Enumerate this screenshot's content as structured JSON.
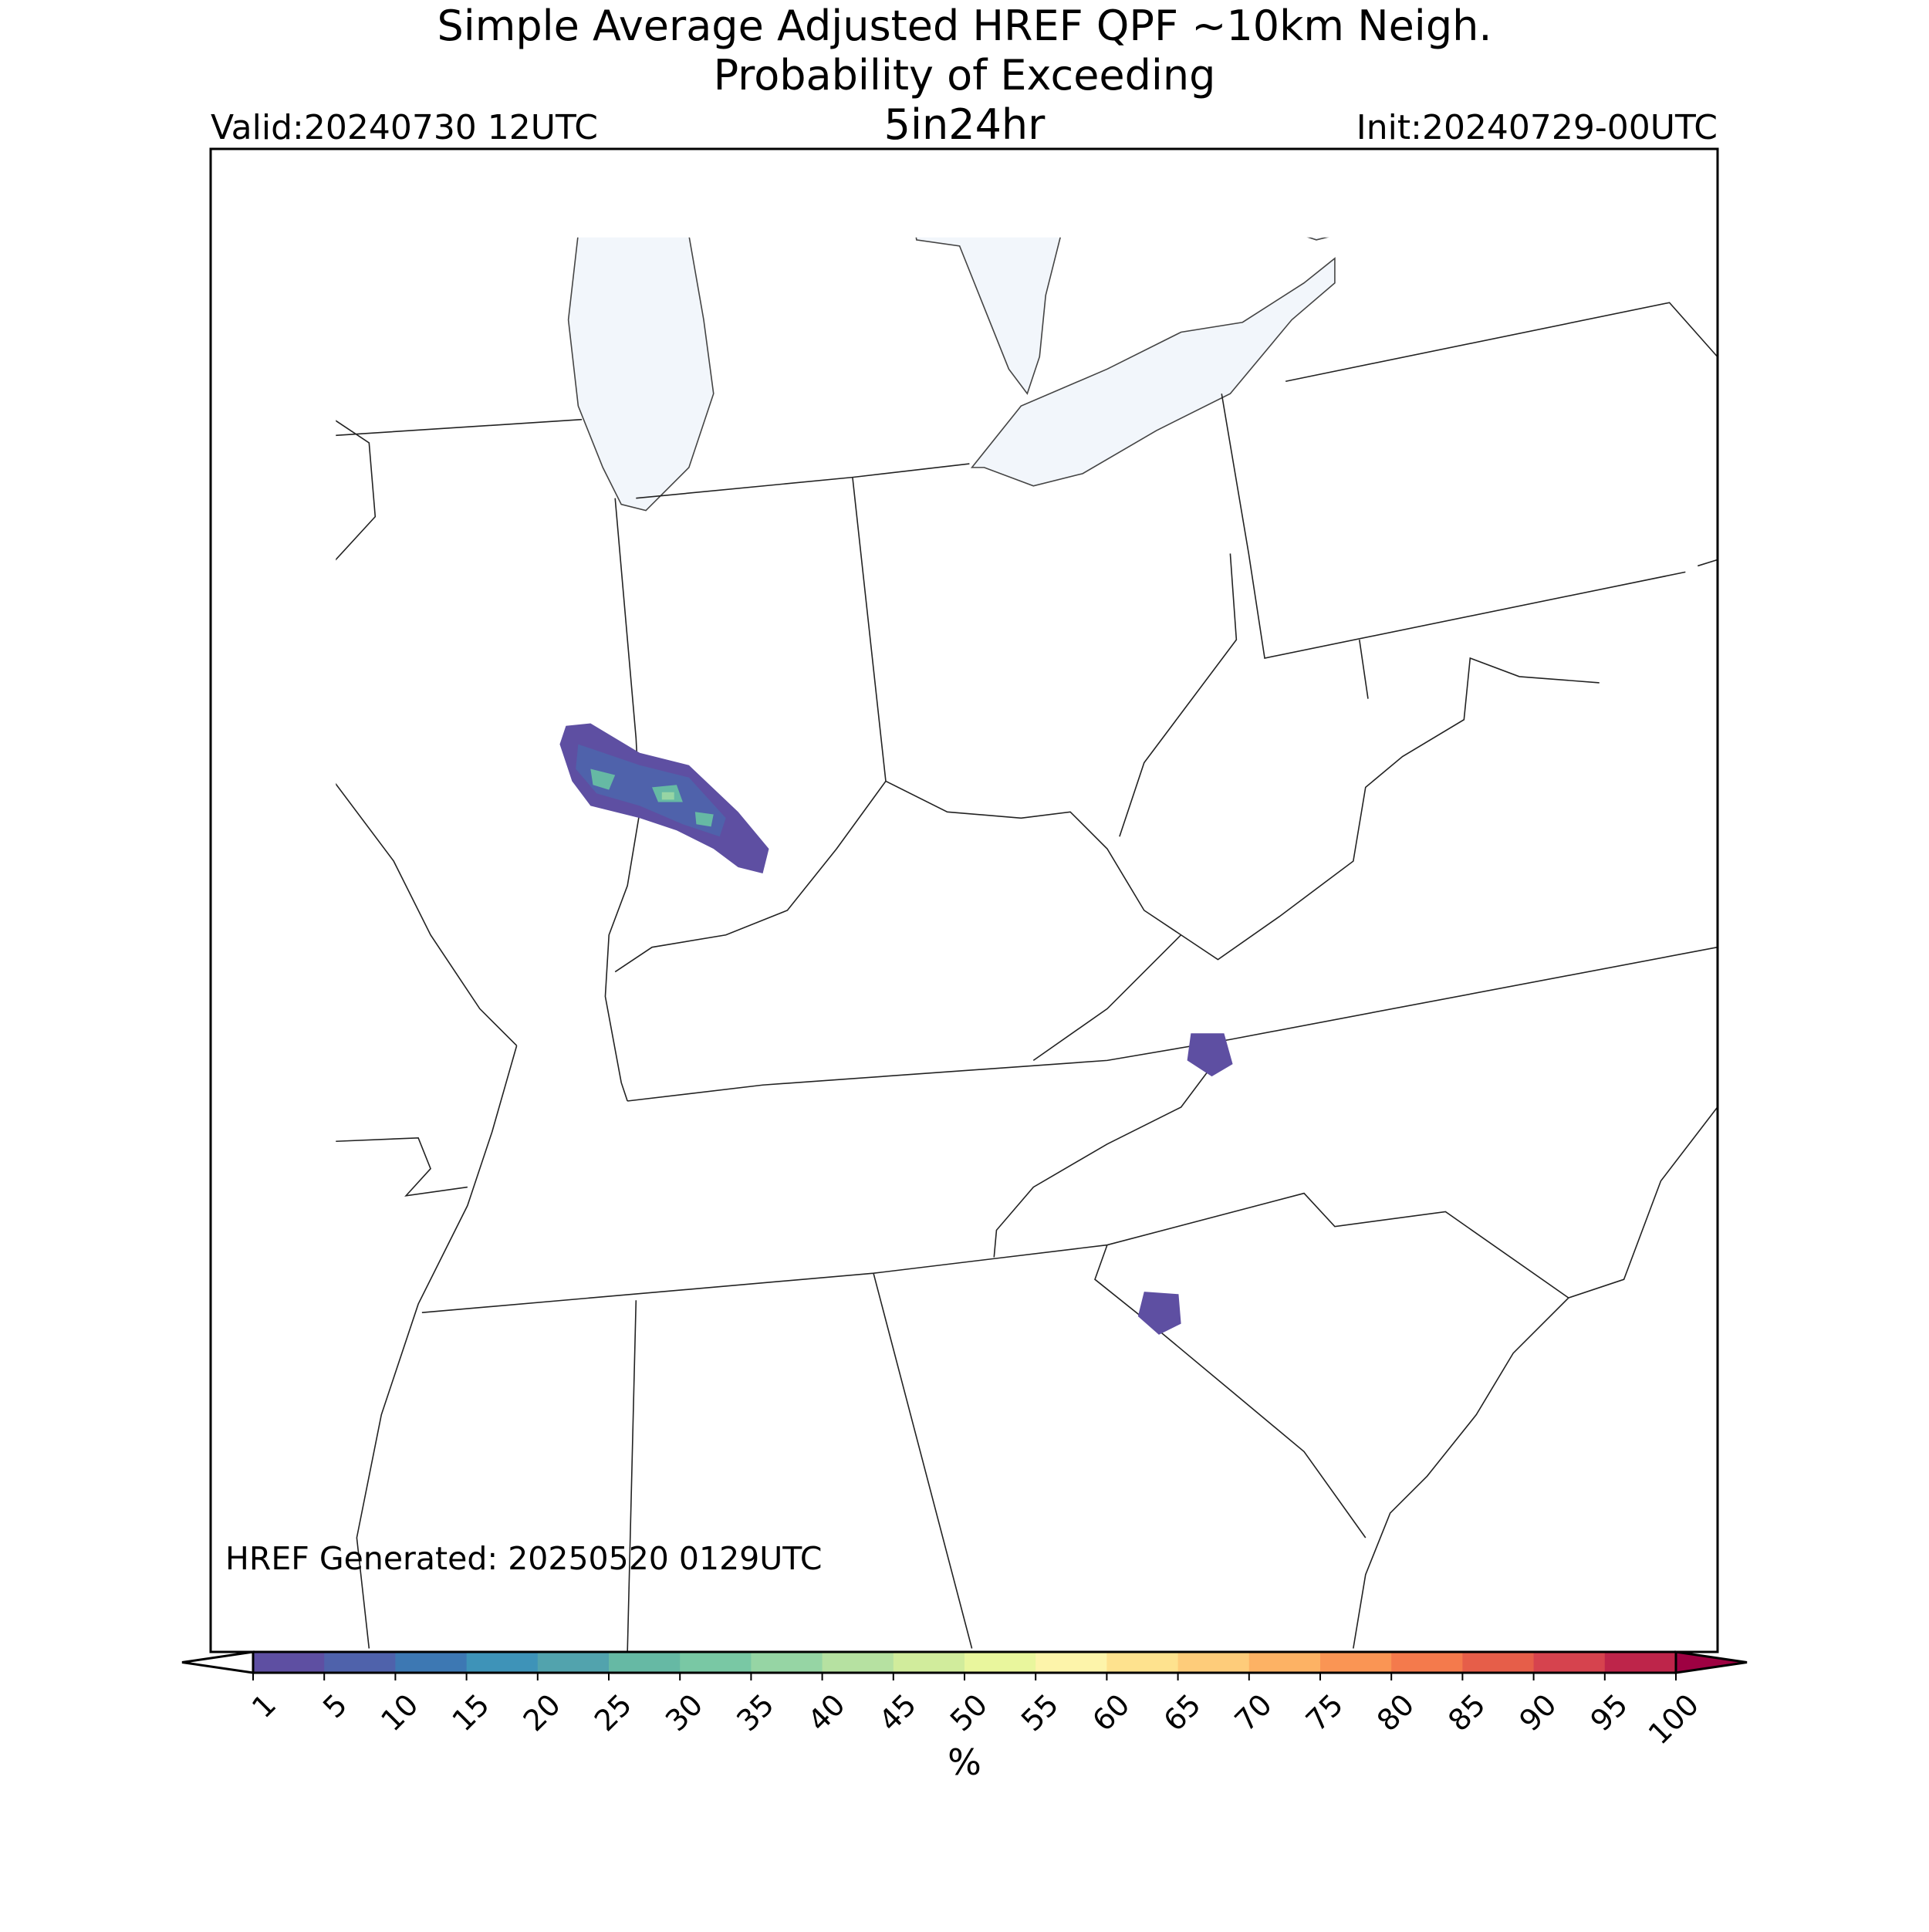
{
  "header": {
    "title_lines": [
      "Simple Average Adjusted HREF QPF ~10km Neigh.",
      "Probability of Exceeding",
      "5in24hr"
    ],
    "valid": "Valid:20240730 12UTC",
    "init": "Init:20240729-00UTC"
  },
  "map": {
    "annotation": "HREF Generated: 20250520 0129UTC"
  },
  "colorbar": {
    "label": "%",
    "ticks": [
      1,
      5,
      10,
      15,
      20,
      25,
      30,
      35,
      40,
      45,
      50,
      55,
      60,
      65,
      70,
      75,
      80,
      85,
      90,
      95,
      100
    ],
    "colors": [
      "#5e4fa2",
      "#4f62ab",
      "#3d78b3",
      "#3e93b8",
      "#52a3ad",
      "#66b9a4",
      "#79c8a4",
      "#96d5a4",
      "#b6e1a1",
      "#d1ec9c",
      "#e9f69d",
      "#fdf4aa",
      "#fee28e",
      "#fecc7a",
      "#fdb264",
      "#fa9554",
      "#f47a4c",
      "#e65e49",
      "#d6434e",
      "#be254a"
    ],
    "extend_colors": [
      "#ffffff",
      "#9e0142"
    ]
  }
}
